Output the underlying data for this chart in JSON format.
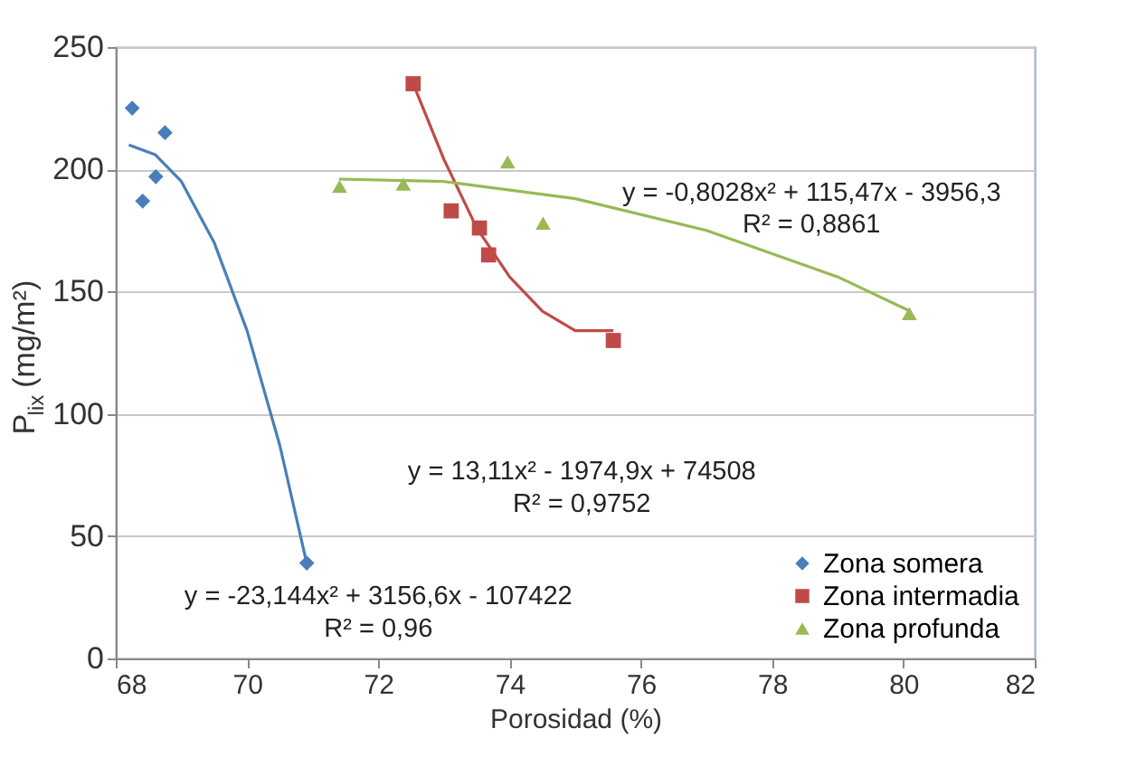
{
  "chart_data": {
    "type": "scatter",
    "xlabel": "Porosidad (%)",
    "ylabel": "P$_{lix}$ (mg/m²)",
    "xlim": [
      68,
      82
    ],
    "xticks": [
      68,
      70,
      72,
      74,
      76,
      78,
      80,
      82
    ],
    "ylim": [
      0,
      250
    ],
    "yticks": [
      0,
      50,
      100,
      150,
      200,
      250
    ],
    "grid": "y",
    "legend": "bottom right",
    "series": [
      {
        "name": "Zona somera",
        "color": "#4a7ebb",
        "marker": "diamond",
        "x": [
          68.25,
          68.75,
          68.61,
          68.41,
          70.91
        ],
        "values": [
          225,
          215,
          197,
          187,
          39
        ]
      },
      {
        "name": "Zona intermadia",
        "color": "#be4b48",
        "marker": "square",
        "x": [
          72.53,
          73.11,
          73.54,
          73.68,
          75.58
        ],
        "values": [
          235,
          183,
          176,
          165,
          130
        ]
      },
      {
        "name": "Zona profunda",
        "color": "#98b954",
        "marker": "triangle",
        "x": [
          71.41,
          72.38,
          73.97,
          74.51,
          80.09
        ],
        "values": [
          193,
          194,
          203,
          178,
          141
        ]
      },
      {
        "type": "line",
        "color": "#4a7ebb",
        "marker": "none",
        "line_style": "solid",
        "x": [
          68.2,
          68.6,
          69.0,
          69.5,
          70.0,
          70.5,
          70.9
        ],
        "values": [
          210,
          206,
          195,
          170,
          134,
          87,
          40
        ]
      },
      {
        "type": "line",
        "color": "#be4b48",
        "marker": "none",
        "line_style": "solid",
        "x": [
          72.5,
          73.0,
          73.5,
          74.0,
          74.5,
          75.0,
          75.58
        ],
        "values": [
          237,
          204,
          176,
          156,
          142,
          134,
          134
        ]
      },
      {
        "type": "line",
        "color": "#98b954",
        "marker": "none",
        "line_style": "solid",
        "x": [
          71.4,
          73,
          75,
          77,
          79,
          80.1
        ],
        "values": [
          196,
          195,
          188,
          175,
          156,
          142
        ]
      }
    ],
    "annotations": [
      "y = -23,144x² + 3156,6x - 107422",
      "R² = 0,96",
      "y = 13,11x² - 1974,9x + 74508",
      "R² = 0,9752",
      "y = -0,8028x² + 115,47x - 3956,3",
      "R² = 0,8861"
    ]
  }
}
